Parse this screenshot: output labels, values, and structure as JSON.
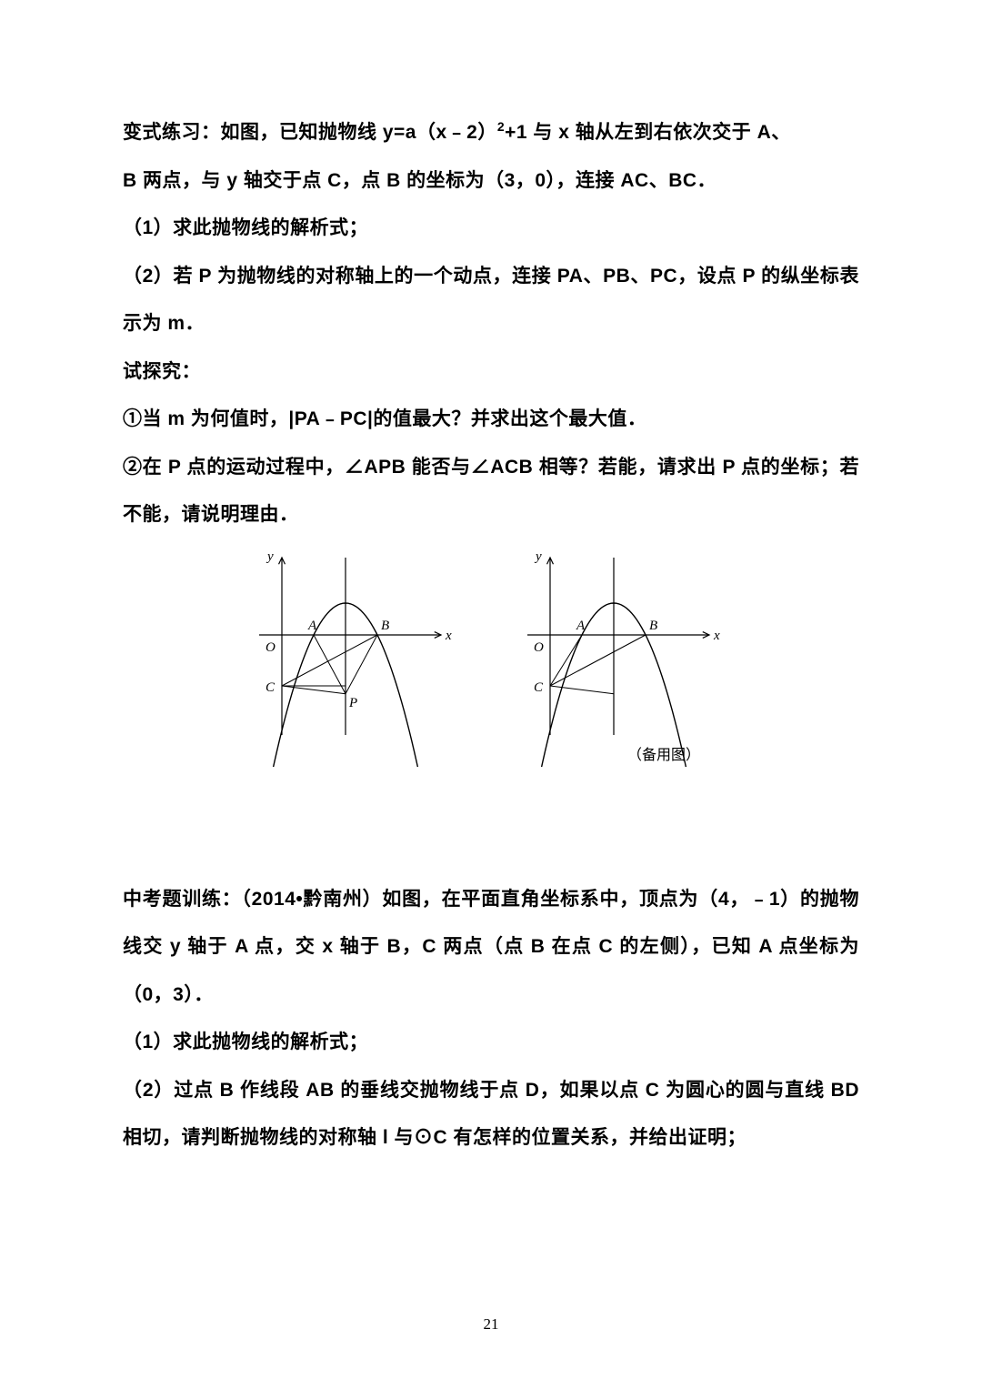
{
  "problem1": {
    "line1_a": "变式练习：如图，已知抛物线 y=a（x﹣2）",
    "line1_sup": "2",
    "line1_b": "+1 与 x 轴从左到右依次交于 A、",
    "line2": "B 两点，与 y 轴交于点 C，点 B 的坐标为（3，0），连接 AC、BC．",
    "q1": "（1）求此抛物线的解析式；",
    "q2": "（2）若 P 为抛物线的对称轴上的一个动点，连接 PA、PB、PC，设点 P 的纵坐标表示为 m．",
    "prompt": "试探究：",
    "sub1": "①当 m 为何值时，|PA﹣PC|的值最大？并求出这个最大值．",
    "sub2": "②在 P 点的运动过程中，∠APB 能否与∠ACB 相等？若能，请求出 P 点的坐标；若不能，请说明理由．",
    "caption": "（备用图）"
  },
  "problem2": {
    "line1": "中考题训练：（2014•黔南州）如图，在平面直角坐标系中，顶点为（4，﹣1）的抛物线交 y 轴于 A 点，交 x 轴于 B，C 两点（点 B 在点 C 的左侧），已知 A 点坐标为（0，3）．",
    "q1": "（1）求此抛物线的解析式；",
    "q2": "（2）过点 B 作线段 AB 的垂线交抛物线于点 D，如果以点 C 为圆心的圆与直线 BD 相切，请判断抛物线的对称轴 l 与⊙C 有怎样的位置关系，并给出证明；"
  },
  "figure": {
    "label_y": "y",
    "label_x": "x",
    "label_O": "O",
    "label_A": "A",
    "label_B": "B",
    "label_C": "C",
    "label_P": "P",
    "stroke": "#000000",
    "axis_stroke_width": 1.2,
    "curve_stroke_width": 1.4,
    "font_size": 15,
    "font_family": "Times New Roman, serif",
    "font_style": "italic"
  },
  "pagenum": "21"
}
